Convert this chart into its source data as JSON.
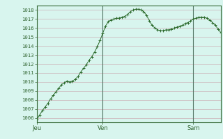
{
  "ylabel_values": [
    1006,
    1007,
    1008,
    1009,
    1010,
    1011,
    1012,
    1013,
    1014,
    1015,
    1016,
    1017,
    1018
  ],
  "ylim": [
    1005.5,
    1018.5
  ],
  "xlim": [
    0,
    67
  ],
  "x_ticks_pos": [
    0,
    24,
    57
  ],
  "x_tick_labels": [
    "Jeu",
    "Ven",
    "Sam"
  ],
  "bg_color": "#d8f5ee",
  "plot_bg_color": "#d8f5ee",
  "grid_major_color": "#c8a0a8",
  "grid_minor_color": "#ddc8cc",
  "line_color": "#2d6b2d",
  "marker_color": "#2d6b2d",
  "vline_color": "#557766",
  "axis_color": "#336633",
  "y_values": [
    1005.8,
    1006.3,
    1006.8,
    1007.2,
    1007.6,
    1008.1,
    1008.5,
    1008.9,
    1009.3,
    1009.7,
    1009.9,
    1010.1,
    1010.0,
    1010.1,
    1010.3,
    1010.6,
    1011.1,
    1011.5,
    1011.9,
    1012.4,
    1012.8,
    1013.3,
    1013.9,
    1014.6,
    1015.4,
    1016.2,
    1016.7,
    1016.9,
    1017.0,
    1017.1,
    1017.1,
    1017.2,
    1017.3,
    1017.5,
    1017.8,
    1018.0,
    1018.1,
    1018.1,
    1018.0,
    1017.8,
    1017.4,
    1016.8,
    1016.3,
    1016.0,
    1015.8,
    1015.7,
    1015.7,
    1015.8,
    1015.8,
    1015.9,
    1016.0,
    1016.1,
    1016.2,
    1016.3,
    1016.5,
    1016.6,
    1016.8,
    1017.0,
    1017.1,
    1017.2,
    1017.2,
    1017.2,
    1017.1,
    1016.9,
    1016.6,
    1016.3,
    1015.9,
    1015.5
  ]
}
